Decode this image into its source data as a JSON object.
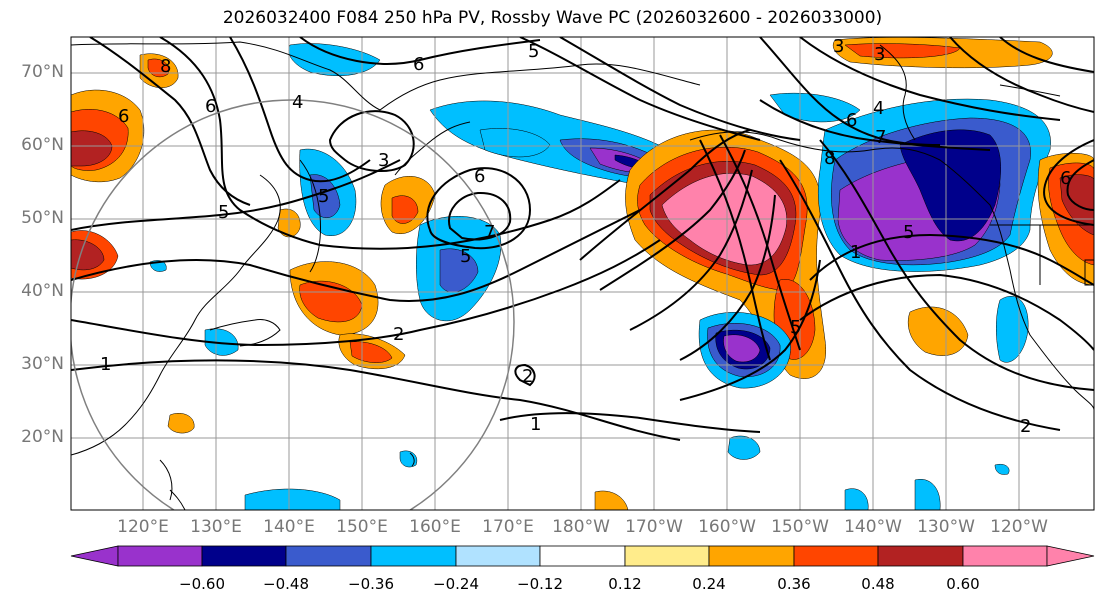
{
  "title": "2026032400 F084 250 hPa PV, Rossby Wave PC (2026032600 - 2026033000)",
  "lat_labels": [
    "70°N",
    "60°N",
    "50°N",
    "40°N",
    "30°N",
    "20°N"
  ],
  "lon_labels": [
    "120°E",
    "130°E",
    "140°E",
    "150°E",
    "160°E",
    "170°E",
    "180°W",
    "170°W",
    "160°W",
    "150°W",
    "140°W",
    "130°W",
    "120°W"
  ],
  "colorbar": {
    "colors": [
      "#9932cc",
      "#00008b",
      "#3a5bcd",
      "#00bfff",
      "#b0e2ff",
      "#ffffff",
      "#ffec8b",
      "#ffa500",
      "#ff4500",
      "#b22222",
      "#ff82ab"
    ],
    "tick_labels": [
      "−0.60",
      "−0.48",
      "−0.36",
      "−0.24",
      "−0.12",
      "0.12",
      "0.24",
      "0.36",
      "0.48",
      "0.60"
    ]
  },
  "contour_labels": [
    "6",
    "8",
    "6",
    "4",
    "5",
    "3",
    "5",
    "6",
    "7",
    "5",
    "2",
    "1",
    "2",
    "1",
    "5",
    "6",
    "7",
    "8",
    "4",
    "3",
    "5",
    "6",
    "2",
    "1",
    "5",
    "3",
    "6"
  ]
}
